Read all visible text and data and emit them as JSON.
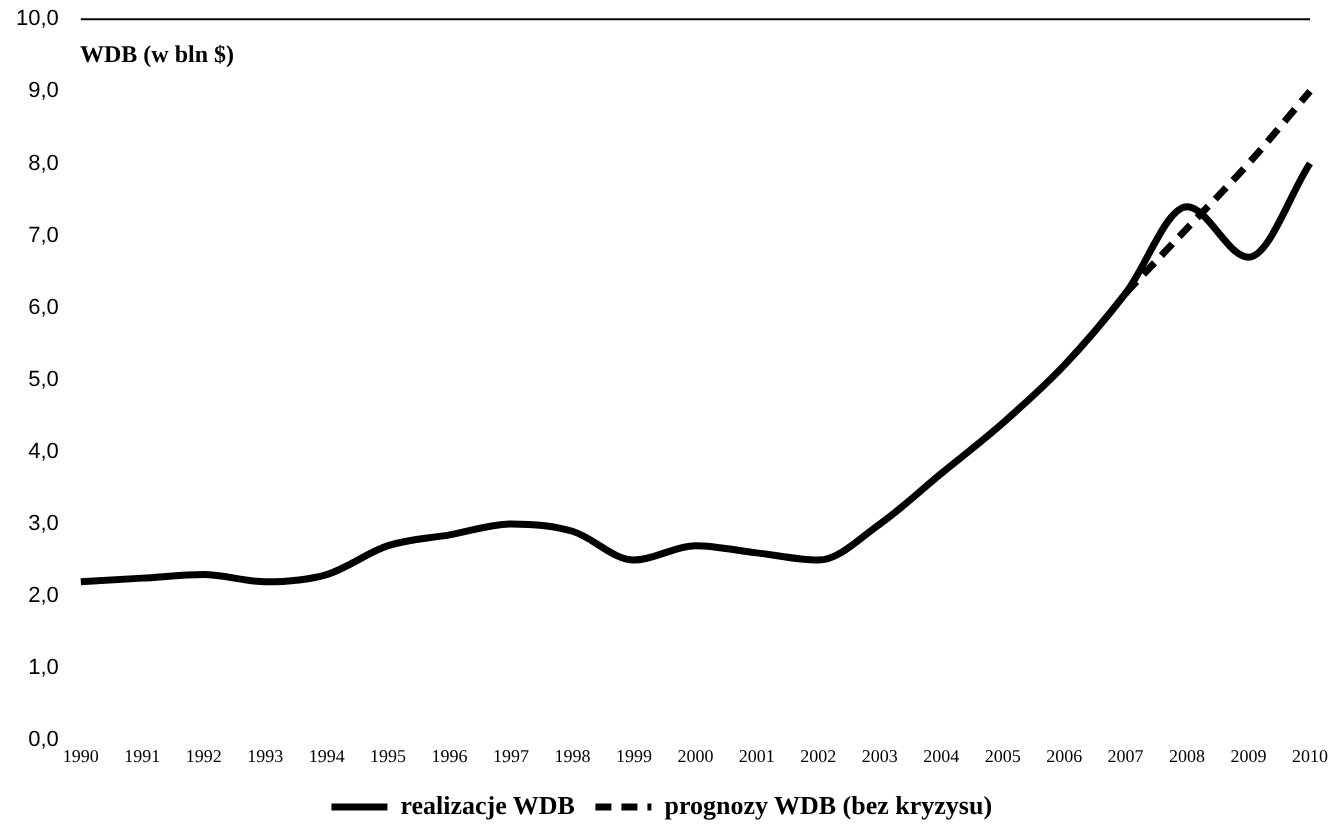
{
  "chart_data": {
    "type": "line",
    "ylabel": "WDB (w bln $)",
    "categories": [
      "1990",
      "1991",
      "1992",
      "1993",
      "1994",
      "1995",
      "1996",
      "1997",
      "1998",
      "1999",
      "2000",
      "2001",
      "2002",
      "2003",
      "2004",
      "2005",
      "2006",
      "2007",
      "2008",
      "2009",
      "2010"
    ],
    "series": [
      {
        "name": "realizacje WDB",
        "color": "#000000",
        "line_style": "solid",
        "values": [
          2.2,
          2.25,
          2.3,
          2.2,
          2.3,
          2.7,
          2.85,
          3.0,
          2.9,
          2.5,
          2.7,
          2.6,
          2.5,
          3.0,
          3.7,
          4.4,
          5.2,
          6.2,
          7.4,
          6.7,
          8.0
        ]
      },
      {
        "name": "prognozy WDB (bez kryzysu)",
        "color": "#000000",
        "line_style": "dashed",
        "values": [
          null,
          null,
          null,
          null,
          null,
          null,
          null,
          null,
          null,
          null,
          null,
          null,
          null,
          null,
          null,
          null,
          null,
          6.2,
          7.1,
          8.0,
          9.0
        ]
      }
    ],
    "ylim": [
      0,
      10
    ],
    "yticks": [
      {
        "value": 0,
        "label": "0,0"
      },
      {
        "value": 1,
        "label": "1,0"
      },
      {
        "value": 2,
        "label": "2,0"
      },
      {
        "value": 3,
        "label": "3,0"
      },
      {
        "value": 4,
        "label": "4,0"
      },
      {
        "value": 5,
        "label": "5,0"
      },
      {
        "value": 6,
        "label": "6,0"
      },
      {
        "value": 7,
        "label": "7,0"
      },
      {
        "value": 8,
        "label": "8,0"
      },
      {
        "value": 9,
        "label": "9,0"
      },
      {
        "value": 10,
        "label": "10,0"
      }
    ],
    "grid": false,
    "legend": "bottom",
    "marker": "none"
  }
}
